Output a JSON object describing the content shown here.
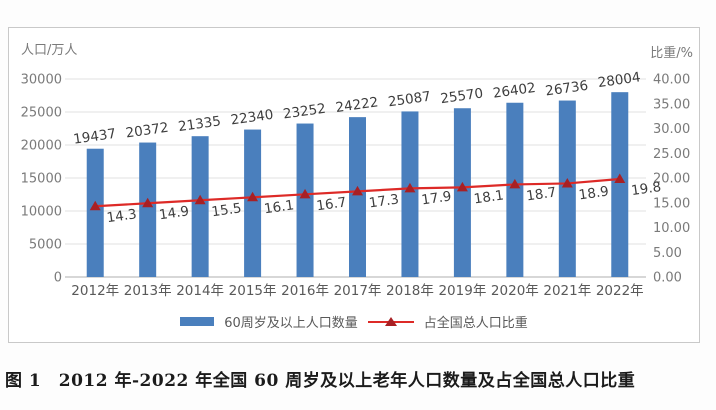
{
  "figure": {
    "caption": "图 1　2012 年-2022 年全国 60 周岁及以上老年人口数量及占全国总人口比重"
  },
  "chart_data": {
    "type": "bar",
    "title": "",
    "categories": [
      "2012年",
      "2013年",
      "2014年",
      "2015年",
      "2016年",
      "2017年",
      "2018年",
      "2019年",
      "2020年",
      "2021年",
      "2022年"
    ],
    "series": [
      {
        "name": "60周岁及以上人口数量",
        "type": "bar",
        "yaxis": "left",
        "color": "#4a7fbd",
        "label_color": "#3d3d3d",
        "values": [
          19437,
          20372,
          21335,
          22340,
          23252,
          24222,
          25087,
          25570,
          26402,
          26736,
          28004
        ]
      },
      {
        "name": "占全国总人口比重",
        "type": "line",
        "yaxis": "right",
        "color": "#dd2a27",
        "marker": "triangle",
        "marker_color": "#a82024",
        "label_color": "#3d3d3d",
        "values": [
          14.3,
          14.9,
          15.5,
          16.1,
          16.7,
          17.3,
          17.9,
          18.1,
          18.7,
          18.9,
          19.8
        ]
      }
    ],
    "left_axis": {
      "title": "人口/万人",
      "min": 0,
      "max": 30000,
      "tick_step": 5000,
      "tick_labels": [
        "30000",
        "25000",
        "20000",
        "15000",
        "10000",
        "5000",
        "0"
      ]
    },
    "right_axis": {
      "title": "比重/%",
      "min": 0,
      "max": 40,
      "tick_step": 5,
      "tick_labels": [
        "40.00",
        "35.00",
        "30.00",
        "25.00",
        "20.00",
        "15.00",
        "10.00",
        "5.00",
        "0.00"
      ]
    },
    "grid": "horizontal major gridlines (left axis)",
    "grid_color": "#e2e2e2",
    "axis_line_color": "#bfbfbf",
    "tick_text_color": "#7a7a7a",
    "category_text_color": "#595959",
    "legend_position": "bottom",
    "data_label_rotation_deg": -8
  }
}
